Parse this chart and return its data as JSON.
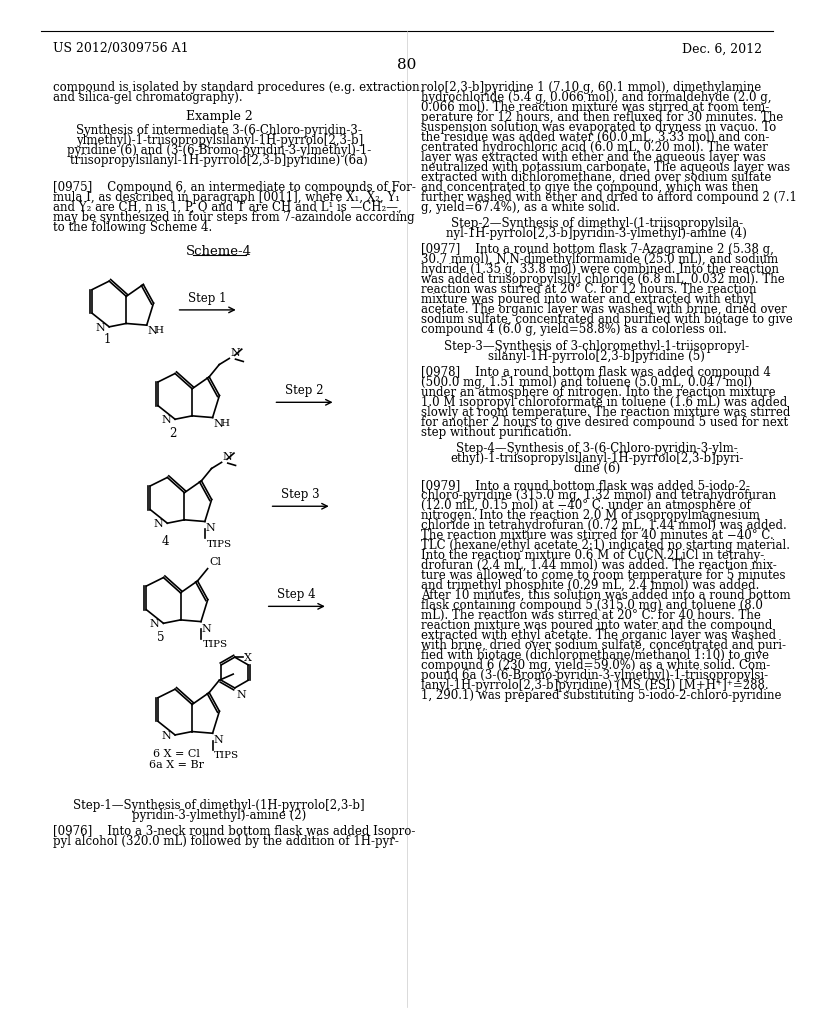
{
  "page_number": "80",
  "patent_number": "US 2012/0309756 A1",
  "patent_date": "Dec. 6, 2012",
  "background_color": "#ffffff",
  "text_color": "#000000"
}
